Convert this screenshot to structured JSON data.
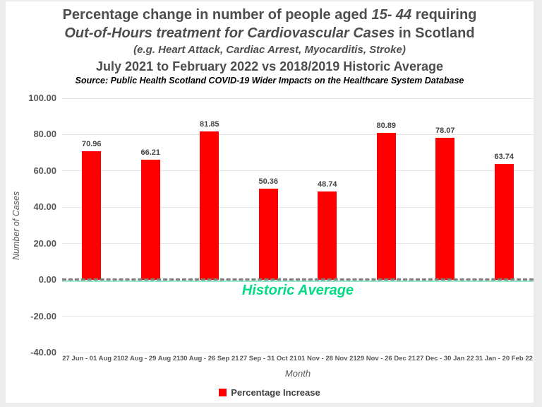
{
  "title": {
    "line1_pre": "Percentage change in number of people aged ",
    "line1_italic": "15- 44",
    "line1_post": " requiring",
    "line2_italic": "Out-of-Hours treatment for Cardiovascular Cases",
    "line2_post": " in Scotland",
    "line3": "(e.g. Heart Attack, Cardiac Arrest, Myocarditis, Stroke)",
    "line4": "July 2021 to February 2022 vs 2018/2019 Historic Average",
    "line5": "Source: Public Health Scotland COVID-19 Wider Impacts on the Healthcare System Database"
  },
  "chart_data": {
    "type": "bar",
    "categories": [
      "27 Jun - 01 Aug 21",
      "02 Aug - 29 Aug 21",
      "30 Aug - 26 Sep 21",
      "27 Sep - 31 Oct 21",
      "01 Nov - 28 Nov 21",
      "29 Nov - 26 Dec 21",
      "27 Dec - 30 Jan 22",
      "31 Jan - 20 Feb 22"
    ],
    "values": [
      70.96,
      66.21,
      81.85,
      50.36,
      48.74,
      80.89,
      78.07,
      63.74
    ],
    "series_name": "Percentage Increase",
    "xlabel": "Month",
    "ylabel": "Number of Cases",
    "ylim": [
      -40,
      100
    ],
    "yticks": [
      "100.00",
      "80.00",
      "60.00",
      "40.00",
      "20.00",
      "0.00",
      "-20.00",
      "-40.00"
    ],
    "grid": true,
    "legend_position": "bottom",
    "bar_color": "#ff0000",
    "reference_line": {
      "value": 0,
      "label": "Historic Average"
    }
  },
  "colors": {
    "bar": "#ff0000",
    "title_text": "#4d4d4d",
    "axis_text": "#595959",
    "gridline": "#e7e7e7",
    "reference_dash": "#7f7f7f",
    "reference_solid": "#99e7c9",
    "reference_label": "#00db85"
  }
}
